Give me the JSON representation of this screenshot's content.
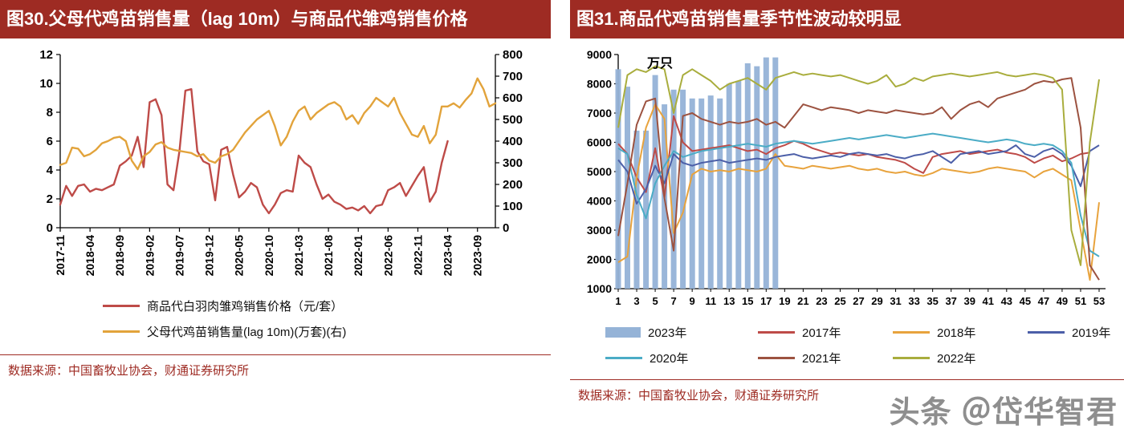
{
  "figure_left": {
    "header": "图30.父母代鸡苗销售量（lag 10m）与商品代雏鸡销售价格",
    "source": "数据来源：中国畜牧业协会，财通证券研究所"
  },
  "figure_right": {
    "header": "图31.商品代鸡苗销售量季节性波动较明显",
    "source": "数据来源：中国畜牧业协会，财通证券研究所"
  },
  "watermark": "头条 ＠岱华智君",
  "chart_data": [
    {
      "type": "line",
      "title": "父母代鸡苗销售量（lag 10m）与商品代雏鸡销售价格",
      "x_count": 74,
      "x_tick_interval": 5,
      "x_tick_labels": [
        "2017-11",
        "2018-04",
        "2018-09",
        "2019-02",
        "2019-07",
        "2019-12",
        "2020-05",
        "2020-10",
        "2021-03",
        "2021-08",
        "2022-01",
        "2022-06",
        "2022-11",
        "2023-04",
        "2023-09"
      ],
      "left_axis": {
        "min": 0,
        "max": 12,
        "ticks": [
          0,
          2,
          4,
          6,
          8,
          10,
          12
        ]
      },
      "right_axis": {
        "min": 0,
        "max": 800,
        "ticks": [
          0,
          100,
          200,
          300,
          400,
          500,
          600,
          700,
          800
        ]
      },
      "legend_position": "bottom",
      "grid": false,
      "series": [
        {
          "name": "商品代白羽肉雏鸡销售价格（元/套）",
          "axis": "left",
          "color": "#BE4B48",
          "values": [
            1.6,
            2.9,
            2.2,
            2.9,
            3.0,
            2.5,
            2.7,
            2.6,
            2.8,
            3.0,
            4.3,
            4.6,
            5.0,
            6.3,
            4.2,
            8.7,
            8.9,
            7.8,
            3.0,
            2.6,
            5.3,
            9.5,
            9.6,
            5.3,
            4.6,
            4.4,
            1.9,
            5.4,
            5.6,
            3.7,
            2.1,
            2.5,
            3.1,
            2.8,
            1.6,
            1.0,
            1.6,
            2.4,
            2.6,
            2.5,
            5.0,
            4.5,
            4.2,
            3.0,
            2.0,
            2.3,
            1.8,
            1.6,
            1.3,
            1.4,
            1.2,
            1.5,
            1.0,
            1.5,
            1.6,
            2.6,
            2.8,
            3.1,
            2.2,
            2.9,
            3.6,
            4.2,
            1.8,
            2.5,
            4.5,
            6.0
          ]
        },
        {
          "name": "父母代鸡苗销售量(lag 10m)(万套)(右)",
          "axis": "right",
          "color": "#E2A33B",
          "values": [
            290,
            300,
            370,
            365,
            330,
            340,
            360,
            390,
            400,
            415,
            420,
            400,
            310,
            270,
            330,
            350,
            385,
            395,
            370,
            360,
            355,
            350,
            345,
            330,
            340,
            310,
            300,
            330,
            340,
            360,
            400,
            440,
            470,
            500,
            520,
            540,
            470,
            380,
            420,
            490,
            540,
            560,
            500,
            530,
            550,
            570,
            580,
            560,
            500,
            520,
            480,
            530,
            560,
            600,
            580,
            560,
            600,
            530,
            480,
            430,
            420,
            470,
            390,
            430,
            560,
            560,
            575,
            555,
            590,
            620,
            690,
            640,
            560,
            575
          ]
        }
      ]
    },
    {
      "type": "bar+line",
      "title": "商品代鸡苗销售量季节性波动较明显",
      "unit_label": "万只",
      "grid": false,
      "legend_position": "bottom",
      "y_axis": {
        "min": 1000,
        "max": 9000,
        "ticks": [
          1000,
          2000,
          3000,
          4000,
          5000,
          6000,
          7000,
          8000,
          9000
        ]
      },
      "x_axis": {
        "min": 1,
        "max": 53,
        "tick_labels": [
          1,
          3,
          5,
          7,
          9,
          11,
          13,
          15,
          17,
          19,
          21,
          23,
          25,
          27,
          29,
          31,
          33,
          35,
          37,
          39,
          41,
          43,
          45,
          47,
          49,
          51,
          53
        ]
      },
      "bar_series": {
        "name": "2023年",
        "color": "#95B3D7",
        "start_week": 1,
        "values": [
          8500,
          7900,
          6400,
          6400,
          8300,
          7300,
          7800,
          7800,
          7500,
          7500,
          7600,
          7500,
          8000,
          8100,
          8700,
          8600,
          8900,
          8900
        ]
      },
      "line_series": [
        {
          "name": "2017年",
          "color": "#BE4B48",
          "values": [
            5950,
            5600,
            4800,
            4300,
            5800,
            4100,
            6900,
            6000,
            5700,
            5750,
            5800,
            5850,
            5900,
            5800,
            5700,
            5750,
            5600,
            5800,
            5900,
            6050,
            5950,
            5800,
            5700,
            5600,
            5650,
            5600,
            5550,
            5600,
            5500,
            5450,
            5400,
            5300,
            5100,
            4950,
            5500,
            5600,
            5650,
            5700,
            5600,
            5650,
            5700,
            5750,
            5650,
            5600,
            5500,
            5300,
            5450,
            5550,
            5350,
            5450,
            5600,
            5650
          ]
        },
        {
          "name": "2018年",
          "color": "#E8A33D",
          "values": [
            1900,
            2100,
            4800,
            6500,
            7300,
            6800,
            2900,
            3600,
            4900,
            5100,
            5000,
            5050,
            5000,
            5100,
            5050,
            5000,
            5100,
            5600,
            5200,
            5150,
            5100,
            5200,
            5150,
            5100,
            5150,
            5200,
            5100,
            5050,
            5100,
            5000,
            4950,
            5000,
            4900,
            4850,
            4950,
            5100,
            5050,
            5000,
            4950,
            5000,
            5100,
            5150,
            5100,
            5050,
            5000,
            4800,
            5000,
            5100,
            4900,
            4700,
            3000,
            1300,
            3950
          ]
        },
        {
          "name": "2019年",
          "color": "#4C5FA8",
          "values": [
            5400,
            5000,
            3900,
            4400,
            5200,
            4600,
            5600,
            5300,
            5200,
            5300,
            5350,
            5400,
            5300,
            5350,
            5400,
            5450,
            5400,
            5500,
            5550,
            5600,
            5500,
            5450,
            5500,
            5550,
            5500,
            5600,
            5650,
            5600,
            5550,
            5600,
            5500,
            5450,
            5550,
            5600,
            5700,
            5500,
            5300,
            5600,
            5650,
            5700,
            5600,
            5650,
            5700,
            5900,
            5600,
            5500,
            5700,
            5800,
            5600,
            5200,
            4500,
            5700,
            5900
          ]
        },
        {
          "name": "2020年",
          "color": "#4BACC6",
          "values": [
            5800,
            5600,
            4200,
            3400,
            4600,
            5200,
            5700,
            5500,
            5600,
            5700,
            5750,
            5800,
            5850,
            5900,
            5950,
            5900,
            5850,
            5950,
            6000,
            6050,
            6000,
            5950,
            6000,
            6050,
            6100,
            6150,
            6100,
            6150,
            6200,
            6250,
            6200,
            6150,
            6200,
            6250,
            6300,
            6250,
            6200,
            6150,
            6100,
            6050,
            6000,
            6050,
            6100,
            6050,
            5950,
            5900,
            5950,
            5900,
            5700,
            5300,
            3500,
            2300,
            2100
          ]
        },
        {
          "name": "2021年",
          "color": "#9C5240",
          "values": [
            2800,
            4600,
            6600,
            7400,
            7500,
            4100,
            2300,
            6900,
            7000,
            6800,
            6700,
            6600,
            6700,
            6650,
            6700,
            6800,
            6600,
            6700,
            6500,
            6900,
            7300,
            7200,
            7100,
            7200,
            7150,
            7100,
            7000,
            7100,
            7050,
            7000,
            7100,
            7050,
            7000,
            6950,
            7000,
            7200,
            6800,
            7100,
            7300,
            7400,
            7200,
            7500,
            7600,
            7700,
            7800,
            8000,
            8100,
            8050,
            8150,
            8200,
            6500,
            1800,
            1300
          ]
        },
        {
          "name": "2022年",
          "color": "#A9AD3D",
          "values": [
            6500,
            8300,
            8500,
            8400,
            8600,
            8500,
            7000,
            8300,
            8500,
            8300,
            8100,
            7800,
            8000,
            8100,
            8200,
            8000,
            7800,
            8200,
            8300,
            8400,
            8300,
            8350,
            8300,
            8250,
            8300,
            8200,
            8100,
            8000,
            8100,
            8300,
            7900,
            8000,
            8200,
            8100,
            8250,
            8300,
            8350,
            8300,
            8250,
            8300,
            8350,
            8400,
            8300,
            8250,
            8300,
            8350,
            8300,
            8200,
            7800,
            3000,
            1800,
            6000,
            8150
          ]
        }
      ]
    }
  ]
}
